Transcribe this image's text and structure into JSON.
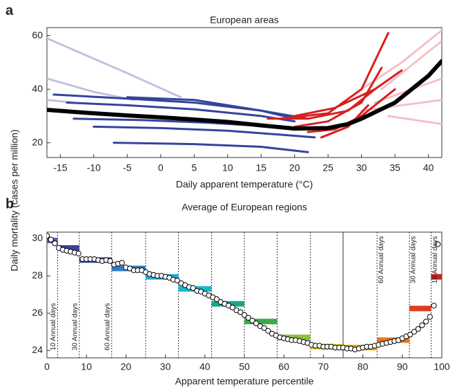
{
  "chart_data": [
    {
      "type": "line",
      "panel_label": "a",
      "title": "European areas",
      "x_label": "Daily apparent temperature (°C)",
      "y_label": "Daily mortality (cases per million)",
      "xlim": [
        -17,
        42
      ],
      "xticks": [
        -15,
        -10,
        -5,
        0,
        5,
        10,
        15,
        20,
        25,
        30,
        35,
        40
      ],
      "ylim": [
        14.5,
        63
      ],
      "yticks": [
        20,
        40,
        60
      ],
      "series": [
        {
          "color": "#c4c0e2",
          "x": [
            -17,
            -5,
            3
          ],
          "values": [
            59,
            46,
            37
          ]
        },
        {
          "color": "#c4c0e2",
          "x": [
            -17,
            -10,
            -4
          ],
          "values": [
            44,
            39,
            36
          ]
        },
        {
          "color": "#c4c0e2",
          "x": [
            -17,
            -13
          ],
          "values": [
            36,
            35
          ]
        },
        {
          "color": "#f4c0c8",
          "x": [
            30,
            36,
            42
          ],
          "values": [
            40,
            50,
            62
          ]
        },
        {
          "color": "#f4c0c8",
          "x": [
            33,
            42
          ],
          "values": [
            40,
            58
          ]
        },
        {
          "color": "#f4c0c8",
          "x": [
            32,
            42
          ],
          "values": [
            35,
            44
          ]
        },
        {
          "color": "#f4c0c8",
          "x": [
            30,
            42
          ],
          "values": [
            32,
            36
          ]
        },
        {
          "color": "#f4c0c8",
          "x": [
            34,
            42
          ],
          "values": [
            30,
            27
          ]
        },
        {
          "color": "#34449c",
          "x": [
            -16,
            -5,
            5,
            15,
            22
          ],
          "values": [
            38,
            36.5,
            35,
            32,
            29
          ]
        },
        {
          "color": "#34449c",
          "x": [
            -14,
            -5,
            5,
            15,
            20
          ],
          "values": [
            35,
            34,
            32.5,
            30,
            28
          ]
        },
        {
          "color": "#34449c",
          "x": [
            -13,
            -3,
            7,
            17,
            22
          ],
          "values": [
            29,
            28.5,
            27.5,
            26,
            25
          ]
        },
        {
          "color": "#34449c",
          "x": [
            -10,
            0,
            10,
            18,
            23
          ],
          "values": [
            26,
            25.5,
            24.5,
            23,
            22
          ]
        },
        {
          "color": "#34449c",
          "x": [
            -7,
            5,
            15,
            22
          ],
          "values": [
            20,
            19.5,
            18.5,
            16.5
          ]
        },
        {
          "color": "#34449c",
          "x": [
            -5,
            5,
            15,
            20
          ],
          "values": [
            37,
            36,
            32,
            29
          ]
        },
        {
          "color": "#d81e1e",
          "x": [
            18,
            25,
            30,
            34
          ],
          "values": [
            29,
            31,
            40,
            61
          ]
        },
        {
          "color": "#d81e1e",
          "x": [
            20,
            25,
            30,
            33
          ],
          "values": [
            26,
            28,
            35,
            48
          ]
        },
        {
          "color": "#d81e1e",
          "x": [
            22,
            26,
            30,
            35
          ],
          "values": [
            24,
            25,
            30,
            40
          ]
        },
        {
          "color": "#d81e1e",
          "x": [
            16,
            22,
            28,
            32
          ],
          "values": [
            29,
            29,
            32,
            40
          ]
        },
        {
          "color": "#d81e1e",
          "x": [
            24,
            28,
            31
          ],
          "values": [
            22,
            26,
            34
          ]
        },
        {
          "color": "#d81e1e",
          "x": [
            20,
            26,
            32,
            36
          ],
          "values": [
            30,
            33,
            40,
            47
          ]
        },
        {
          "color": "#000000",
          "width": 6,
          "x": [
            -17,
            -10,
            -5,
            0,
            5,
            10,
            15,
            20,
            25,
            28,
            30,
            35,
            40,
            42
          ],
          "values": [
            32.3,
            31,
            30.2,
            29.5,
            28.7,
            27.8,
            26.5,
            25.3,
            25.5,
            27,
            29,
            35,
            45,
            50.5
          ]
        }
      ]
    },
    {
      "type": "scatter",
      "panel_label": "b",
      "title": "Average of European regions",
      "x_label": "Apparent temperature percentile",
      "xlim": [
        0,
        100
      ],
      "xticks": [
        0,
        10,
        20,
        30,
        40,
        50,
        60,
        70,
        80,
        90,
        100
      ],
      "ylim": [
        23.6,
        30.35
      ],
      "yticks": [
        24,
        26,
        28,
        30
      ],
      "x": [
        0,
        1,
        2,
        3,
        4,
        5,
        6,
        7,
        8,
        9,
        10,
        11,
        12,
        13,
        14,
        15,
        16,
        17,
        18,
        19,
        20,
        21,
        22,
        23,
        24,
        25,
        26,
        27,
        28,
        29,
        30,
        31,
        32,
        33,
        34,
        35,
        36,
        37,
        38,
        39,
        40,
        41,
        42,
        43,
        44,
        45,
        46,
        47,
        48,
        49,
        50,
        51,
        52,
        53,
        54,
        55,
        56,
        57,
        58,
        59,
        60,
        61,
        62,
        63,
        64,
        65,
        66,
        67,
        68,
        69,
        70,
        71,
        72,
        73,
        74,
        75,
        76,
        77,
        78,
        79,
        80,
        81,
        82,
        83,
        84,
        85,
        86,
        87,
        88,
        89,
        90,
        91,
        92,
        93,
        94,
        95,
        96,
        97,
        98,
        99
      ],
      "values": [
        30.15,
        29.95,
        29.75,
        29.5,
        29.4,
        29.35,
        29.3,
        29.25,
        29.2,
        28.9,
        28.9,
        28.9,
        28.9,
        28.85,
        28.8,
        28.85,
        28.8,
        28.6,
        28.65,
        28.7,
        28.45,
        28.4,
        28.3,
        28.3,
        28.3,
        28.2,
        28.1,
        28.05,
        28.0,
        28.0,
        27.95,
        27.9,
        27.8,
        27.75,
        27.6,
        27.5,
        27.4,
        27.35,
        27.2,
        27.15,
        27.05,
        26.95,
        26.85,
        26.75,
        26.6,
        26.5,
        26.4,
        26.3,
        26.15,
        26.05,
        25.9,
        25.75,
        25.6,
        25.45,
        25.3,
        25.2,
        25.05,
        24.9,
        24.8,
        24.7,
        24.65,
        24.6,
        24.55,
        24.55,
        24.5,
        24.45,
        24.4,
        24.3,
        24.25,
        24.25,
        24.2,
        24.2,
        24.2,
        24.15,
        24.15,
        24.15,
        24.1,
        24.1,
        24.05,
        24.1,
        24.15,
        24.2,
        24.2,
        24.25,
        24.3,
        24.35,
        24.4,
        24.45,
        24.5,
        24.55,
        24.65,
        24.75,
        24.85,
        25.0,
        25.15,
        25.35,
        25.55,
        25.8,
        26.4,
        29.7
      ],
      "segments": [
        {
          "start": 0,
          "end": 2.7,
          "value": 29.9,
          "color": "#5a5ab0"
        },
        {
          "start": 2.7,
          "end": 8.2,
          "value": 29.5,
          "color": "#3a4498"
        },
        {
          "start": 8.2,
          "end": 16.4,
          "value": 28.85,
          "color": "#2c56a6"
        },
        {
          "start": 16.4,
          "end": 25,
          "value": 28.4,
          "color": "#2f7ec2"
        },
        {
          "start": 25,
          "end": 33.3,
          "value": 27.95,
          "color": "#1ea8dc"
        },
        {
          "start": 33.3,
          "end": 41.7,
          "value": 27.3,
          "color": "#18b8cc"
        },
        {
          "start": 41.7,
          "end": 50,
          "value": 26.5,
          "color": "#17a68a"
        },
        {
          "start": 50,
          "end": 58.3,
          "value": 25.55,
          "color": "#3aaa48"
        },
        {
          "start": 58.3,
          "end": 66.7,
          "value": 24.7,
          "color": "#8cc040"
        },
        {
          "start": 66.7,
          "end": 75,
          "value": 24.2,
          "color": "#dcd21e"
        },
        {
          "start": 75,
          "end": 83.6,
          "value": 24.15,
          "color": "#f0a21e"
        },
        {
          "start": 83.6,
          "end": 91.8,
          "value": 24.55,
          "color": "#e8781e"
        },
        {
          "start": 91.8,
          "end": 97.3,
          "value": 26.25,
          "color": "#e03c1e"
        },
        {
          "start": 97.3,
          "end": 100,
          "value": 27.95,
          "color": "#d01e1e"
        }
      ],
      "vlines": [
        2.7,
        8.2,
        16.4,
        25,
        33.3,
        41.7,
        50,
        58.3,
        66.7,
        75,
        83.6,
        91.8,
        97.3
      ],
      "annotations": [
        {
          "x": 2.7,
          "label": "10 Annual days"
        },
        {
          "x": 8.2,
          "label": "30 Annual days"
        },
        {
          "x": 16.4,
          "label": "60 Annual days"
        },
        {
          "x": 83.6,
          "label": "60 Annual days"
        },
        {
          "x": 91.8,
          "label": "30 Annual days"
        },
        {
          "x": 97.3,
          "label": "10 Annual days"
        }
      ]
    }
  ]
}
